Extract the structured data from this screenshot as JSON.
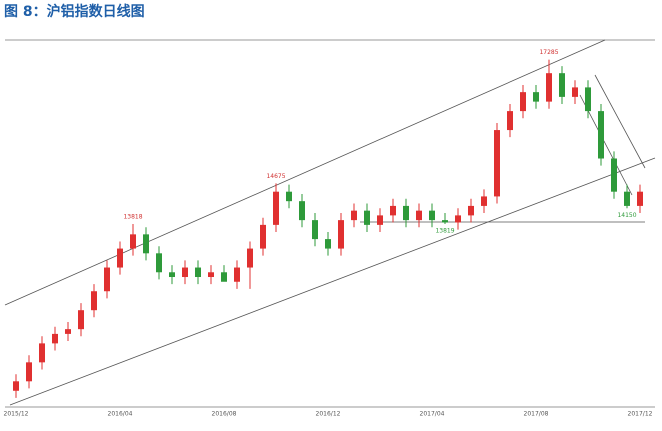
{
  "chart_data": {
    "type": "candlestick",
    "title": "图 8：沪铝指数日线图",
    "categories": [
      "2015/12",
      null,
      null,
      null,
      null,
      null,
      null,
      null,
      "2016/04",
      null,
      null,
      null,
      null,
      null,
      null,
      null,
      "2016/08",
      null,
      null,
      null,
      null,
      null,
      null,
      null,
      "2016/12",
      null,
      null,
      null,
      null,
      null,
      null,
      null,
      "2017/04",
      null,
      null,
      null,
      null,
      null,
      null,
      null,
      "2017/08",
      null,
      null,
      null,
      null,
      null,
      null,
      null,
      "2017/12"
    ],
    "open": [
      10300,
      10500,
      10900,
      11300,
      11500,
      11600,
      12000,
      12400,
      12900,
      13300,
      13600,
      13200,
      12800,
      12700,
      12900,
      12700,
      12800,
      12600,
      12900,
      13300,
      13800,
      14500,
      14300,
      13900,
      13500,
      13300,
      13900,
      14100,
      13800,
      14000,
      14200,
      13900,
      14100,
      13900,
      13850,
      14000,
      14200,
      14400,
      15800,
      16200,
      16600,
      16400,
      17000,
      16500,
      16700,
      16200,
      15200,
      14500,
      14200
    ],
    "high": [
      10650,
      11050,
      11450,
      11650,
      11750,
      12150,
      12550,
      13050,
      13450,
      13818,
      13750,
      13350,
      12950,
      13050,
      13050,
      12950,
      12950,
      13050,
      13450,
      13950,
      14675,
      14650,
      14450,
      14050,
      13650,
      14050,
      14250,
      14250,
      14150,
      14350,
      14350,
      14250,
      14250,
      14050,
      14150,
      14350,
      14550,
      15950,
      16350,
      16750,
      16750,
      17285,
      17150,
      16850,
      16850,
      16350,
      15350,
      14650,
      14650
    ],
    "low": [
      10150,
      10350,
      10750,
      11150,
      11350,
      11450,
      11850,
      12250,
      12750,
      13150,
      13050,
      12650,
      12550,
      12550,
      12550,
      12550,
      12650,
      12450,
      12450,
      13150,
      13650,
      14150,
      13750,
      13350,
      13150,
      13150,
      13750,
      13650,
      13650,
      13850,
      13750,
      13750,
      13750,
      13819,
      13700,
      13850,
      14050,
      14250,
      15650,
      16050,
      16250,
      16250,
      16350,
      16350,
      16050,
      15050,
      14350,
      14150,
      14050
    ],
    "close": [
      10500,
      10900,
      11300,
      11500,
      11600,
      12000,
      12400,
      12900,
      13300,
      13600,
      13200,
      12800,
      12700,
      12900,
      12700,
      12800,
      12600,
      12900,
      13300,
      13800,
      14500,
      14300,
      13900,
      13500,
      13300,
      13900,
      14100,
      13800,
      14000,
      14200,
      13900,
      14100,
      13900,
      13850,
      14000,
      14200,
      14400,
      15800,
      16200,
      16600,
      16400,
      17000,
      16500,
      16700,
      16200,
      15200,
      14500,
      14200,
      14500
    ],
    "annotations": [
      "13818",
      "14675",
      "17285",
      "13819",
      "14150"
    ],
    "ylim": [
      10000,
      17700
    ],
    "up_color": "#e03030",
    "down_color": "#2e9a3a"
  }
}
